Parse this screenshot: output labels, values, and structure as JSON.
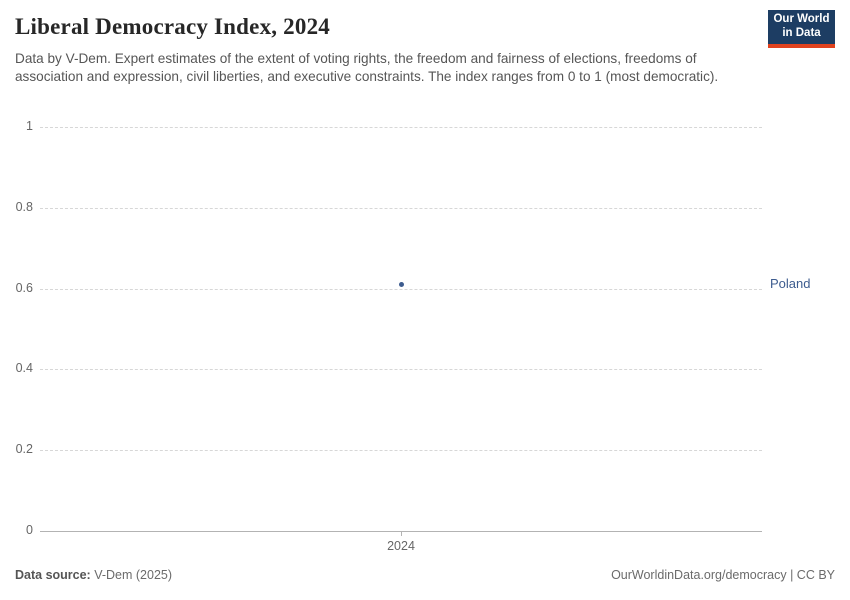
{
  "header": {
    "title": "Liberal Democracy Index, 2024",
    "subtitle": "Data by V-Dem. Expert estimates of the extent of voting rights, the freedom and fairness of elections, freedoms of association and expression, civil liberties, and executive constraints. The index ranges from 0 to 1 (most democratic).",
    "logo_line1": "Our World",
    "logo_line2": "in Data",
    "logo_bg": "#1d3d63",
    "logo_accent": "#e0421e"
  },
  "chart_data": {
    "type": "scatter",
    "x": [
      2024
    ],
    "series": [
      {
        "name": "Poland",
        "values": [
          0.61
        ],
        "color": "#3d5c8f"
      }
    ],
    "xticks": [
      "2024"
    ],
    "yticks": [
      0,
      0.2,
      0.4,
      0.6,
      0.8,
      1
    ],
    "ylim": [
      0,
      1
    ],
    "grid": true,
    "gridline_color": "#d7d7d7",
    "axis_color": "#b3b3b3",
    "legend_position": "right-entity-label"
  },
  "footer": {
    "source_label": "Data source:",
    "source_value": " V-Dem (2025)",
    "attribution": "OurWorldinData.org/democracy | CC BY"
  }
}
